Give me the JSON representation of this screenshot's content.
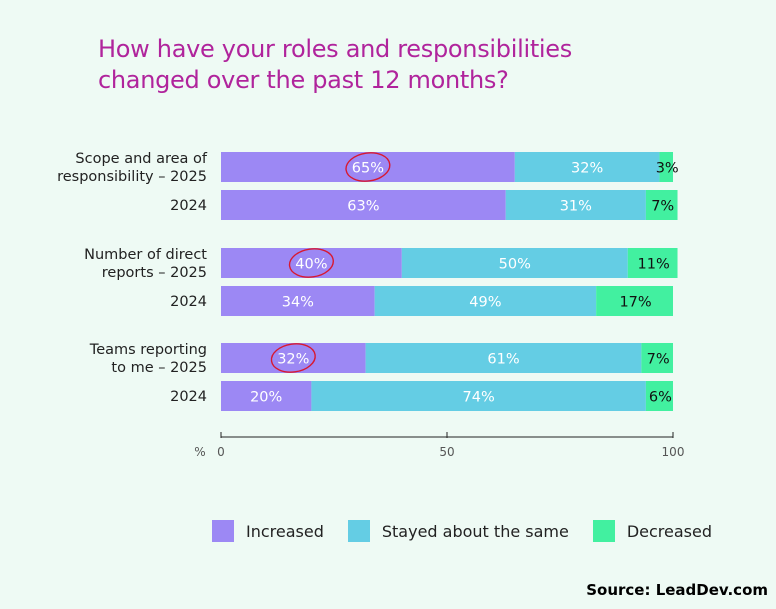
{
  "colors": {
    "title": "#b0249c",
    "increased": "#9c88f4",
    "same": "#64cde4",
    "decreased": "#42f0a0",
    "circle": "#d81830",
    "axis": "#222222",
    "background": "#eefaf4"
  },
  "chart_data": {
    "type": "bar",
    "orientation": "horizontal",
    "stacked": true,
    "title": "How have your roles and responsibilities changed over the past 12 months?",
    "xlabel": "%",
    "xlim": [
      0,
      100
    ],
    "xticks": [
      "0",
      "50",
      "100"
    ],
    "categories": [
      [
        "Scope and area of",
        "responsibility – 2025"
      ],
      [
        "2024"
      ],
      [
        "Number of direct",
        "reports – 2025"
      ],
      [
        "2024"
      ],
      [
        "Teams reporting",
        "to me – 2025"
      ],
      [
        "2024"
      ]
    ],
    "series": [
      {
        "name": "Increased",
        "values": [
          65,
          63,
          40,
          34,
          32,
          20
        ]
      },
      {
        "name": "Stayed about the same",
        "values": [
          32,
          31,
          50,
          49,
          61,
          74
        ]
      },
      {
        "name": "Decreased",
        "values": [
          3,
          7,
          11,
          17,
          7,
          6
        ]
      }
    ],
    "bar_labels": [
      [
        "65%",
        "63%",
        "40%",
        "34%",
        "32%",
        "20%"
      ],
      [
        "32%",
        "31%",
        "50%",
        "49%",
        "61%",
        "74%"
      ],
      [
        "3%",
        "7%",
        "11%",
        "17%",
        "7%",
        "6%"
      ]
    ],
    "highlighted_bars": [
      0,
      2,
      4
    ],
    "legend": [
      "Increased",
      "Stayed about the same",
      "Decreased"
    ]
  },
  "source": "Source: LeadDev.com"
}
